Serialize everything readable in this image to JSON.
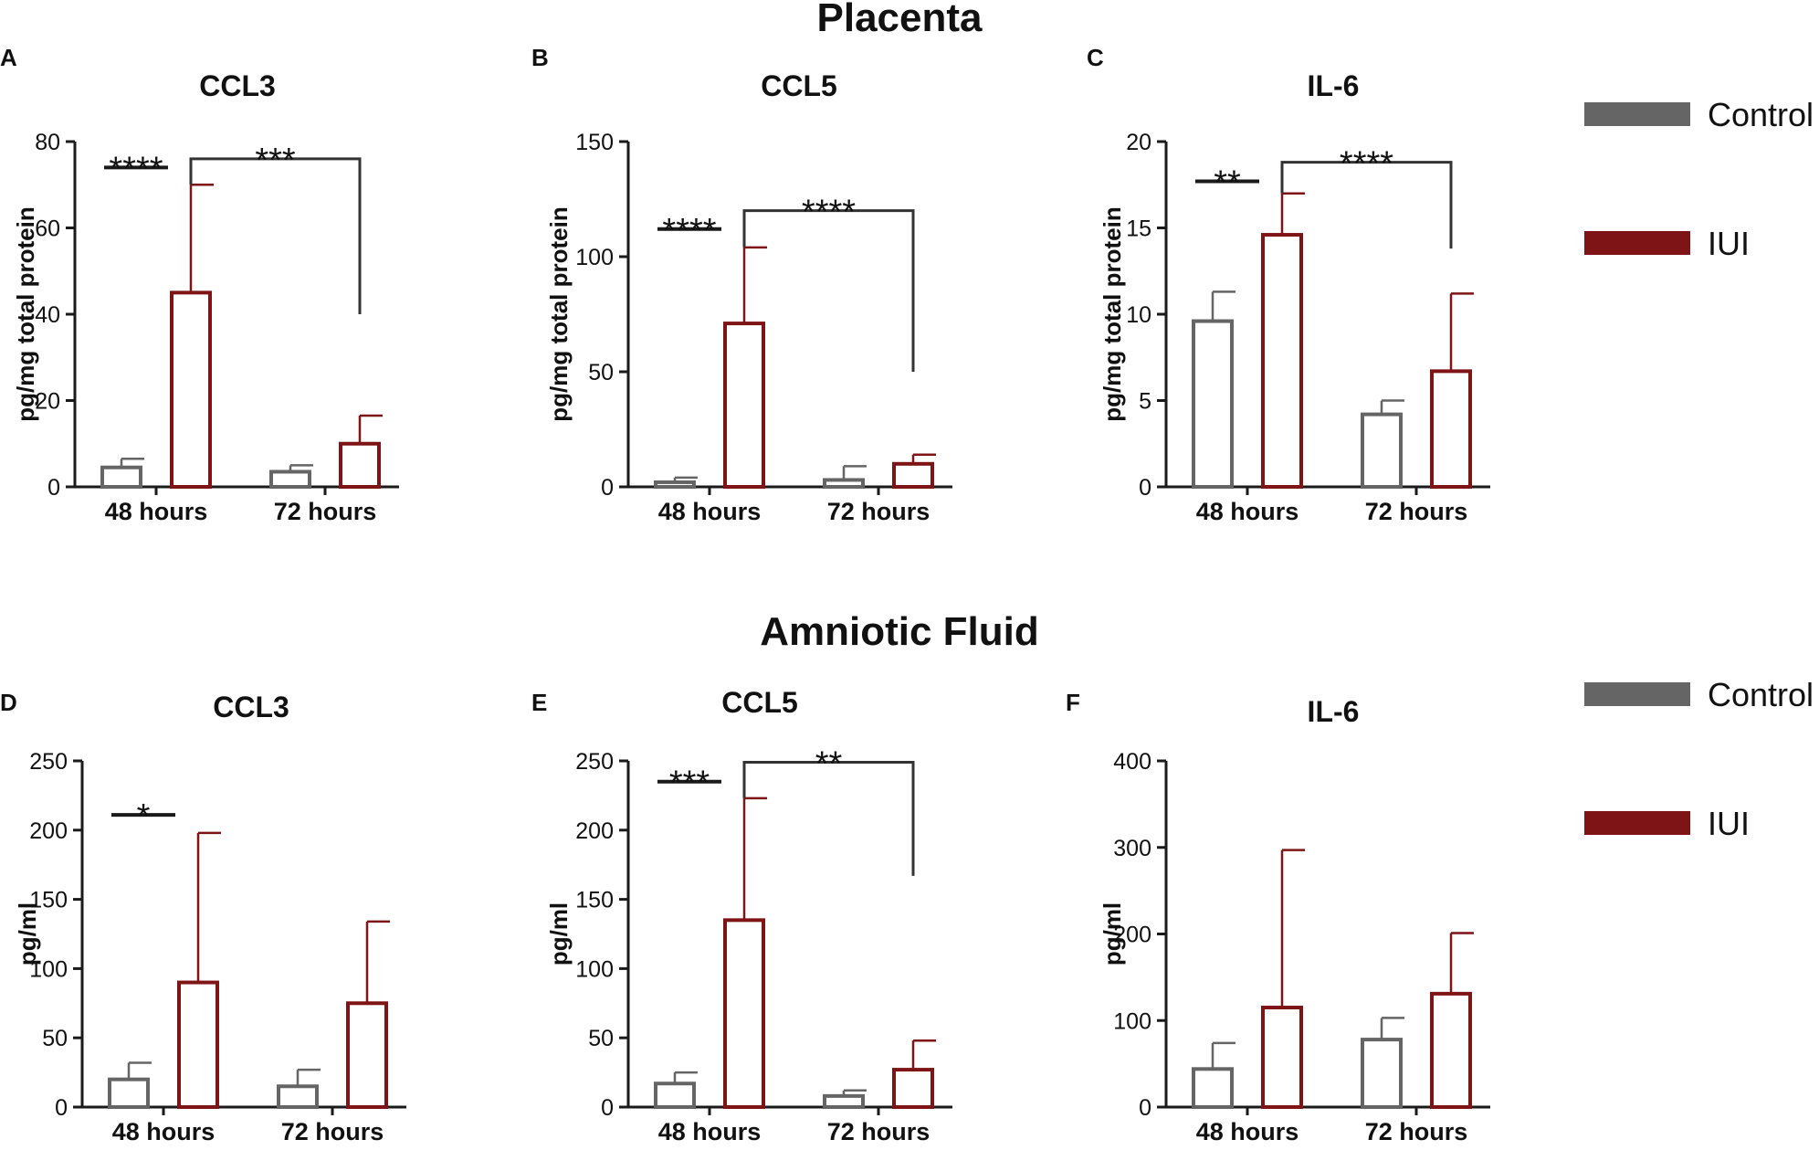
{
  "section_titles": {
    "top": "Placenta",
    "bottom": "Amniotic Fluid"
  },
  "colors": {
    "control": "#656565",
    "iui": "#7e1416",
    "axis": "#1a1a1a",
    "bracket": "#333333"
  },
  "legend": [
    {
      "key": "control",
      "label": "Control"
    },
    {
      "key": "iui",
      "label": "IUI"
    }
  ],
  "chart_data": [
    {
      "type": "bar",
      "panel": "A",
      "title": "CCL3",
      "ylabel": "pg/mg total protein",
      "categories": [
        "48 hours",
        "72 hours"
      ],
      "ylim": [
        0,
        80
      ],
      "yticks": [
        0,
        20,
        40,
        60,
        80
      ],
      "series": [
        {
          "name": "Control",
          "values": [
            4.5,
            3.5
          ],
          "errors": [
            2,
            1.5
          ]
        },
        {
          "name": "IUI",
          "values": [
            45,
            10
          ],
          "errors": [
            25,
            6.5
          ]
        }
      ],
      "significance": [
        {
          "type": "pair",
          "group": 0,
          "label": "****",
          "y": 74
        },
        {
          "type": "bridge",
          "label": "***",
          "y": 76,
          "left_end": 70,
          "right_end": 40
        }
      ]
    },
    {
      "type": "bar",
      "panel": "B",
      "title": "CCL5",
      "ylabel": "pg/mg total protein",
      "categories": [
        "48 hours",
        "72 hours"
      ],
      "ylim": [
        0,
        150
      ],
      "yticks": [
        0,
        50,
        100,
        150
      ],
      "series": [
        {
          "name": "Control",
          "values": [
            2,
            3
          ],
          "errors": [
            2,
            6
          ]
        },
        {
          "name": "IUI",
          "values": [
            71,
            10
          ],
          "errors": [
            33,
            4
          ]
        }
      ],
      "significance": [
        {
          "type": "pair",
          "group": 0,
          "label": "****",
          "y": 112
        },
        {
          "type": "bridge",
          "label": "****",
          "y": 120,
          "left_end": 104,
          "right_end": 50
        }
      ]
    },
    {
      "type": "bar",
      "panel": "C",
      "title": "IL-6",
      "ylabel": "pg/mg total protein",
      "categories": [
        "48 hours",
        "72 hours"
      ],
      "ylim": [
        0,
        20
      ],
      "yticks": [
        0,
        5,
        10,
        15,
        20
      ],
      "series": [
        {
          "name": "Control",
          "values": [
            9.6,
            4.2
          ],
          "errors": [
            1.7,
            0.8
          ]
        },
        {
          "name": "IUI",
          "values": [
            14.6,
            6.7
          ],
          "errors": [
            2.4,
            4.5
          ]
        }
      ],
      "significance": [
        {
          "type": "pair",
          "group": 0,
          "label": "**",
          "y": 17.7
        },
        {
          "type": "bridge",
          "label": "****",
          "y": 18.8,
          "left_end": 17,
          "right_end": 13.8
        }
      ]
    },
    {
      "type": "bar",
      "panel": "D",
      "title": "CCL3",
      "ylabel": "pg/ml",
      "categories": [
        "48 hours",
        "72 hours"
      ],
      "ylim": [
        0,
        250
      ],
      "yticks": [
        0,
        50,
        100,
        150,
        200,
        250
      ],
      "series": [
        {
          "name": "Control",
          "values": [
            20,
            15
          ],
          "errors": [
            12,
            12
          ]
        },
        {
          "name": "IUI",
          "values": [
            90,
            75
          ],
          "errors": [
            108,
            59
          ]
        }
      ],
      "significance": [
        {
          "type": "pair",
          "group": 0,
          "label": "*",
          "y": 211
        }
      ]
    },
    {
      "type": "bar",
      "panel": "E",
      "title": "CCL5",
      "ylabel": "pg/ml",
      "categories": [
        "48 hours",
        "72 hours"
      ],
      "ylim": [
        0,
        250
      ],
      "yticks": [
        0,
        50,
        100,
        150,
        200,
        250
      ],
      "series": [
        {
          "name": "Control",
          "values": [
            17,
            8
          ],
          "errors": [
            8,
            4
          ]
        },
        {
          "name": "IUI",
          "values": [
            135,
            27
          ],
          "errors": [
            88,
            21
          ]
        }
      ],
      "significance": [
        {
          "type": "pair",
          "group": 0,
          "label": "***",
          "y": 235
        },
        {
          "type": "bridge",
          "label": "**",
          "y": 249,
          "left_end": 223,
          "right_end": 167
        }
      ]
    },
    {
      "type": "bar",
      "panel": "F",
      "title": "IL-6",
      "ylabel": "pg/ml",
      "categories": [
        "48 hours",
        "72 hours"
      ],
      "ylim": [
        0,
        400
      ],
      "yticks": [
        0,
        100,
        200,
        300,
        400
      ],
      "series": [
        {
          "name": "Control",
          "values": [
            44,
            78
          ],
          "errors": [
            30,
            25
          ]
        },
        {
          "name": "IUI",
          "values": [
            115,
            131
          ],
          "errors": [
            182,
            70
          ]
        }
      ],
      "significance": []
    }
  ]
}
